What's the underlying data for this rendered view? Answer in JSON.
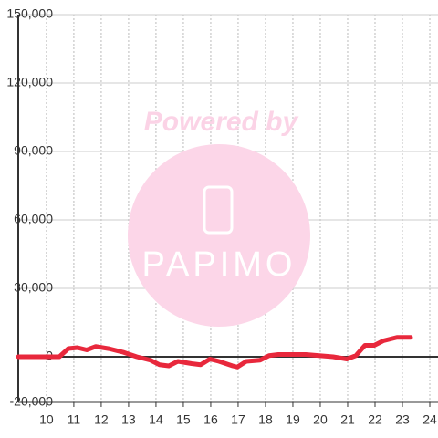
{
  "chart_data": {
    "type": "line",
    "x": [
      8.97,
      10.47,
      10.8,
      11.13,
      11.47,
      11.8,
      12.3,
      12.8,
      13.3,
      13.8,
      14.13,
      14.47,
      14.8,
      15.3,
      15.63,
      15.97,
      16.3,
      16.8,
      16.97,
      17.3,
      17.8,
      18.13,
      18.47,
      19.47,
      19.97,
      20.47,
      20.97,
      21.3,
      21.63,
      21.97,
      22.3,
      22.8,
      23.3
    ],
    "series": [
      {
        "color": "#e8283c",
        "values": [
          0,
          0,
          3600,
          4000,
          3000,
          4500,
          3500,
          2000,
          0,
          -1500,
          -3500,
          -4000,
          -2000,
          -3000,
          -3500,
          -1000,
          -2000,
          -4000,
          -4500,
          -2000,
          -1500,
          500,
          1000,
          1000,
          500,
          0,
          -1000,
          500,
          5000,
          5000,
          7000,
          8500,
          8500
        ]
      }
    ],
    "xlim": [
      8.97,
      24.3
    ],
    "ylim": [
      -20000,
      150000
    ],
    "xticks": [
      10,
      11,
      12,
      13,
      14,
      15,
      16,
      17,
      18,
      19,
      20,
      21,
      22,
      23,
      24
    ],
    "yticks": [
      {
        "value": -20000,
        "label": "-20,000"
      },
      0,
      {
        "value": 30000,
        "label": "30,000"
      },
      {
        "value": 60000,
        "label": "60,000"
      },
      {
        "value": 90000,
        "label": "90,000"
      },
      {
        "value": 120000,
        "label": "120,000"
      },
      {
        "value": 150000,
        "label": "150,000"
      }
    ],
    "grid": true
  },
  "watermark": {
    "line1": "Powered by",
    "line2": "PAPIMO"
  }
}
